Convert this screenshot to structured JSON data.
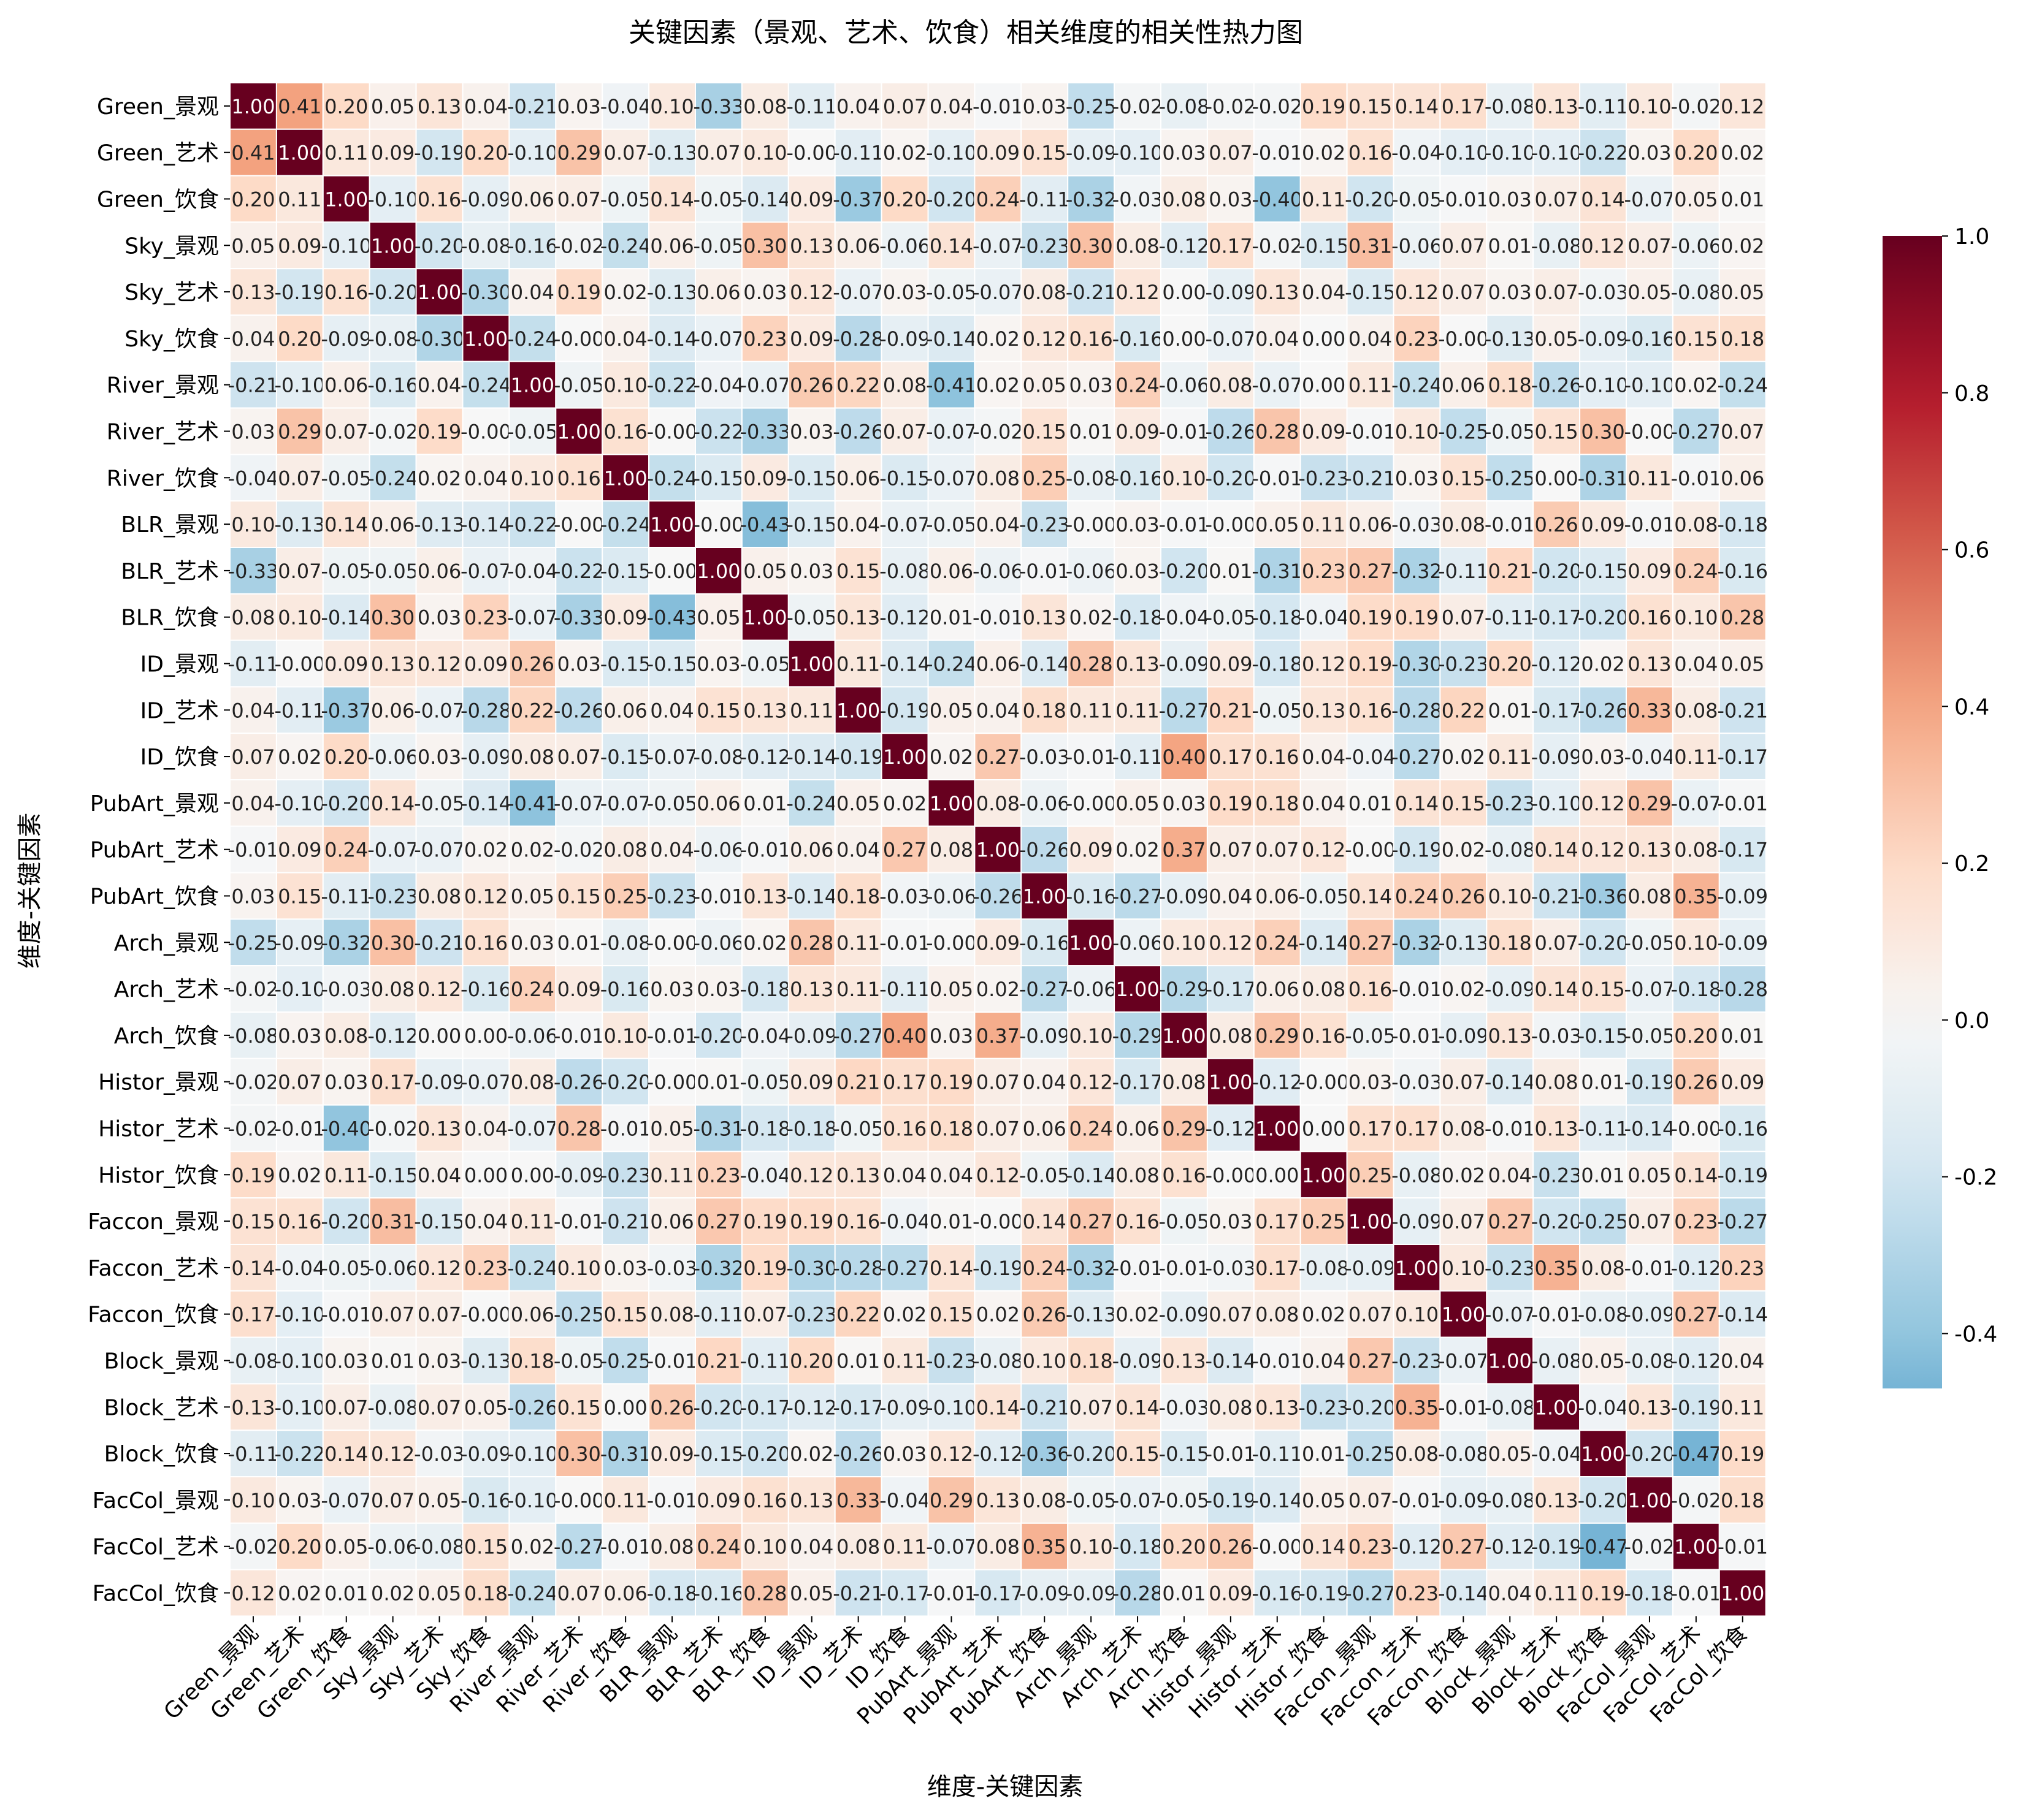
{
  "chart_data": {
    "type": "heatmap",
    "title": "关键因素（景观、艺术、饮食）相关维度的相关性热力图",
    "xlabel": "维度-关键因素",
    "ylabel": "维度-关键因素",
    "labels": [
      "Green_景观",
      "Green_艺术",
      "Green_饮食",
      "Sky_景观",
      "Sky_艺术",
      "Sky_饮食",
      "River_景观",
      "River_艺术",
      "River_饮食",
      "BLR_景观",
      "BLR_艺术",
      "BLR_饮食",
      "ID_景观",
      "ID_艺术",
      "ID_饮食",
      "PubArt_景观",
      "PubArt_艺术",
      "PubArt_饮食",
      "Arch_景观",
      "Arch_艺术",
      "Arch_饮食",
      "Histor_景观",
      "Histor_艺术",
      "Histor_饮食",
      "Faccon_景观",
      "Faccon_艺术",
      "Faccon_饮食",
      "Block_景观",
      "Block_艺术",
      "Block_饮食",
      "FacCol_景观",
      "FacCol_艺术",
      "FacCol_饮食"
    ],
    "values": [
      [
        1.0,
        0.41,
        0.2,
        0.05,
        0.13,
        0.04,
        -0.21,
        0.03,
        -0.04,
        0.1,
        -0.33,
        0.08,
        -0.11,
        0.04,
        0.07,
        0.04,
        -0.01,
        0.03,
        -0.25,
        -0.02,
        -0.08,
        -0.02,
        -0.02,
        0.19,
        0.15,
        0.14,
        0.17,
        -0.08,
        0.13,
        -0.11,
        0.1,
        -0.02,
        0.12
      ],
      [
        0.41,
        1.0,
        0.11,
        0.09,
        -0.19,
        0.2,
        -0.1,
        0.29,
        0.07,
        -0.13,
        0.07,
        0.1,
        -0.0,
        -0.11,
        0.02,
        -0.1,
        0.09,
        0.15,
        -0.09,
        -0.1,
        0.03,
        0.07,
        -0.01,
        0.02,
        0.16,
        -0.04,
        -0.1,
        -0.1,
        -0.1,
        -0.22,
        0.03,
        0.2,
        0.02
      ],
      [
        0.2,
        0.11,
        1.0,
        -0.1,
        0.16,
        -0.09,
        0.06,
        0.07,
        -0.05,
        0.14,
        -0.05,
        -0.14,
        0.09,
        -0.37,
        0.2,
        -0.2,
        0.24,
        -0.11,
        -0.32,
        -0.03,
        0.08,
        0.03,
        -0.4,
        0.11,
        -0.2,
        -0.05,
        -0.01,
        0.03,
        0.07,
        0.14,
        -0.07,
        0.05,
        0.01
      ],
      [
        0.05,
        0.09,
        -0.1,
        1.0,
        -0.2,
        -0.08,
        -0.16,
        -0.02,
        -0.24,
        0.06,
        -0.05,
        0.3,
        0.13,
        0.06,
        -0.06,
        0.14,
        -0.07,
        -0.23,
        0.3,
        0.08,
        -0.12,
        0.17,
        -0.02,
        -0.15,
        0.31,
        -0.06,
        0.07,
        0.01,
        -0.08,
        0.12,
        0.07,
        -0.06,
        0.02
      ],
      [
        0.13,
        -0.19,
        0.16,
        -0.2,
        1.0,
        -0.3,
        0.04,
        0.19,
        0.02,
        -0.13,
        0.06,
        0.03,
        0.12,
        -0.07,
        0.03,
        -0.05,
        -0.07,
        0.08,
        -0.21,
        0.12,
        0.0,
        -0.09,
        0.13,
        0.04,
        -0.15,
        0.12,
        0.07,
        0.03,
        0.07,
        -0.03,
        0.05,
        -0.08,
        0.05
      ],
      [
        0.04,
        0.2,
        -0.09,
        -0.08,
        -0.3,
        1.0,
        -0.24,
        -0.0,
        0.04,
        -0.14,
        -0.07,
        0.23,
        0.09,
        -0.28,
        -0.09,
        -0.14,
        0.02,
        0.12,
        0.16,
        -0.16,
        0.0,
        -0.07,
        0.04,
        0.0,
        0.04,
        0.23,
        -0.0,
        -0.13,
        0.05,
        -0.09,
        -0.16,
        0.15,
        0.18
      ],
      [
        -0.21,
        -0.1,
        0.06,
        -0.16,
        0.04,
        -0.24,
        1.0,
        -0.05,
        0.1,
        -0.22,
        -0.04,
        -0.07,
        0.26,
        0.22,
        0.08,
        -0.41,
        0.02,
        0.05,
        0.03,
        0.24,
        -0.06,
        0.08,
        -0.07,
        0.0,
        0.11,
        -0.24,
        0.06,
        0.18,
        -0.26,
        -0.1,
        -0.1,
        0.02,
        -0.24
      ],
      [
        0.03,
        0.29,
        0.07,
        -0.02,
        0.19,
        -0.0,
        -0.05,
        1.0,
        0.16,
        -0.0,
        -0.22,
        -0.33,
        0.03,
        -0.26,
        0.07,
        -0.07,
        -0.02,
        0.15,
        0.01,
        0.09,
        -0.01,
        -0.26,
        0.28,
        0.09,
        -0.01,
        0.1,
        -0.25,
        -0.05,
        0.15,
        0.3,
        -0.0,
        -0.27,
        0.07
      ],
      [
        -0.04,
        0.07,
        -0.05,
        -0.24,
        0.02,
        0.04,
        0.1,
        0.16,
        1.0,
        -0.24,
        -0.15,
        0.09,
        -0.15,
        0.06,
        -0.15,
        -0.07,
        0.08,
        0.25,
        -0.08,
        -0.16,
        0.1,
        -0.2,
        -0.01,
        -0.23,
        -0.21,
        0.03,
        0.15,
        -0.25,
        0.0,
        -0.31,
        0.11,
        -0.01,
        0.06
      ],
      [
        0.1,
        -0.13,
        0.14,
        0.06,
        -0.13,
        -0.14,
        -0.22,
        -0.0,
        -0.24,
        1.0,
        -0.0,
        -0.43,
        -0.15,
        0.04,
        -0.07,
        -0.05,
        0.04,
        -0.23,
        -0.0,
        0.03,
        -0.01,
        -0.0,
        0.05,
        0.11,
        0.06,
        -0.03,
        0.08,
        -0.01,
        0.26,
        0.09,
        -0.01,
        0.08,
        -0.18
      ],
      [
        -0.33,
        0.07,
        -0.05,
        -0.05,
        0.06,
        -0.07,
        -0.04,
        -0.22,
        -0.15,
        -0.0,
        1.0,
        0.05,
        0.03,
        0.15,
        -0.08,
        0.06,
        -0.06,
        -0.01,
        -0.06,
        0.03,
        -0.2,
        0.01,
        -0.31,
        0.23,
        0.27,
        -0.32,
        -0.11,
        0.21,
        -0.2,
        -0.15,
        0.09,
        0.24,
        -0.16
      ],
      [
        0.08,
        0.1,
        -0.14,
        0.3,
        0.03,
        0.23,
        -0.07,
        -0.33,
        0.09,
        -0.43,
        0.05,
        1.0,
        -0.05,
        0.13,
        -0.12,
        0.01,
        -0.01,
        0.13,
        0.02,
        -0.18,
        -0.04,
        -0.05,
        -0.18,
        -0.04,
        0.19,
        0.19,
        0.07,
        -0.11,
        -0.17,
        -0.2,
        0.16,
        0.1,
        0.28
      ],
      [
        -0.11,
        -0.0,
        0.09,
        0.13,
        0.12,
        0.09,
        0.26,
        0.03,
        -0.15,
        -0.15,
        0.03,
        -0.05,
        1.0,
        0.11,
        -0.14,
        -0.24,
        0.06,
        -0.14,
        0.28,
        0.13,
        -0.09,
        0.09,
        -0.18,
        0.12,
        0.19,
        -0.3,
        -0.23,
        0.2,
        -0.12,
        0.02,
        0.13,
        0.04,
        0.05
      ],
      [
        0.04,
        -0.11,
        -0.37,
        0.06,
        -0.07,
        -0.28,
        0.22,
        -0.26,
        0.06,
        0.04,
        0.15,
        0.13,
        0.11,
        1.0,
        -0.19,
        0.05,
        0.04,
        0.18,
        0.11,
        0.11,
        -0.27,
        0.21,
        -0.05,
        0.13,
        0.16,
        -0.28,
        0.22,
        0.01,
        -0.17,
        -0.26,
        0.33,
        0.08,
        -0.21
      ],
      [
        0.07,
        0.02,
        0.2,
        -0.06,
        0.03,
        -0.09,
        0.08,
        0.07,
        -0.15,
        -0.07,
        -0.08,
        -0.12,
        -0.14,
        -0.19,
        1.0,
        0.02,
        0.27,
        -0.03,
        -0.01,
        -0.11,
        0.4,
        0.17,
        0.16,
        0.04,
        -0.04,
        -0.27,
        0.02,
        0.11,
        -0.09,
        0.03,
        -0.04,
        0.11,
        -0.17
      ],
      [
        0.04,
        -0.1,
        -0.2,
        0.14,
        -0.05,
        -0.14,
        -0.41,
        -0.07,
        -0.07,
        -0.05,
        0.06,
        0.01,
        -0.24,
        0.05,
        0.02,
        1.0,
        0.08,
        -0.06,
        -0.0,
        0.05,
        0.03,
        0.19,
        0.18,
        0.04,
        0.01,
        0.14,
        0.15,
        -0.23,
        -0.1,
        0.12,
        0.29,
        -0.07,
        -0.01
      ],
      [
        -0.01,
        0.09,
        0.24,
        -0.07,
        -0.07,
        0.02,
        0.02,
        -0.02,
        0.08,
        0.04,
        -0.06,
        -0.01,
        0.06,
        0.04,
        0.27,
        0.08,
        1.0,
        -0.26,
        0.09,
        0.02,
        0.37,
        0.07,
        0.07,
        0.12,
        -0.0,
        -0.19,
        0.02,
        -0.08,
        0.14,
        0.12,
        0.13,
        0.08,
        -0.17
      ],
      [
        0.03,
        0.15,
        -0.11,
        -0.23,
        0.08,
        0.12,
        0.05,
        0.15,
        0.25,
        -0.23,
        -0.01,
        0.13,
        -0.14,
        0.18,
        -0.03,
        -0.06,
        -0.26,
        1.0,
        -0.16,
        -0.27,
        -0.09,
        0.04,
        0.06,
        -0.05,
        0.14,
        0.24,
        0.26,
        0.1,
        -0.21,
        -0.36,
        0.08,
        0.35,
        -0.09
      ],
      [
        -0.25,
        -0.09,
        -0.32,
        0.3,
        -0.21,
        0.16,
        0.03,
        0.01,
        -0.08,
        -0.0,
        -0.06,
        0.02,
        0.28,
        0.11,
        -0.01,
        -0.0,
        0.09,
        -0.16,
        1.0,
        -0.06,
        0.1,
        0.12,
        0.24,
        -0.14,
        0.27,
        -0.32,
        -0.13,
        0.18,
        0.07,
        -0.2,
        -0.05,
        0.1,
        -0.09
      ],
      [
        -0.02,
        -0.1,
        -0.03,
        0.08,
        0.12,
        -0.16,
        0.24,
        0.09,
        -0.16,
        0.03,
        0.03,
        -0.18,
        0.13,
        0.11,
        -0.11,
        0.05,
        0.02,
        -0.27,
        -0.06,
        1.0,
        -0.29,
        -0.17,
        0.06,
        0.08,
        0.16,
        -0.01,
        0.02,
        -0.09,
        0.14,
        0.15,
        -0.07,
        -0.18,
        -0.28
      ],
      [
        -0.08,
        0.03,
        0.08,
        -0.12,
        0.0,
        0.0,
        -0.06,
        -0.01,
        0.1,
        -0.01,
        -0.2,
        -0.04,
        -0.09,
        -0.27,
        0.4,
        0.03,
        0.37,
        -0.09,
        0.1,
        -0.29,
        1.0,
        0.08,
        0.29,
        0.16,
        -0.05,
        -0.01,
        -0.09,
        0.13,
        -0.03,
        -0.15,
        -0.05,
        0.2,
        0.01
      ],
      [
        -0.02,
        0.07,
        0.03,
        0.17,
        -0.09,
        -0.07,
        0.08,
        -0.26,
        -0.2,
        -0.0,
        0.01,
        -0.05,
        0.09,
        0.21,
        0.17,
        0.19,
        0.07,
        0.04,
        0.12,
        -0.17,
        0.08,
        1.0,
        -0.12,
        -0.0,
        0.03,
        -0.03,
        0.07,
        -0.14,
        0.08,
        0.01,
        -0.19,
        0.26,
        0.09
      ],
      [
        -0.02,
        -0.01,
        -0.4,
        -0.02,
        0.13,
        0.04,
        -0.07,
        0.28,
        -0.01,
        0.05,
        -0.31,
        -0.18,
        -0.18,
        -0.05,
        0.16,
        0.18,
        0.07,
        0.06,
        0.24,
        0.06,
        0.29,
        -0.12,
        1.0,
        0.0,
        0.17,
        0.17,
        0.08,
        -0.01,
        0.13,
        -0.11,
        -0.14,
        -0.0,
        -0.16
      ],
      [
        0.19,
        0.02,
        0.11,
        -0.15,
        0.04,
        0.0,
        0.0,
        -0.09,
        -0.23,
        0.11,
        0.23,
        -0.04,
        0.12,
        0.13,
        0.04,
        0.04,
        0.12,
        -0.05,
        -0.14,
        0.08,
        0.16,
        -0.0,
        0.0,
        1.0,
        0.25,
        -0.08,
        0.02,
        0.04,
        -0.23,
        0.01,
        0.05,
        0.14,
        -0.19
      ],
      [
        0.15,
        0.16,
        -0.2,
        0.31,
        -0.15,
        0.04,
        0.11,
        -0.01,
        -0.21,
        0.06,
        0.27,
        0.19,
        0.19,
        0.16,
        -0.04,
        0.01,
        -0.0,
        0.14,
        0.27,
        0.16,
        -0.05,
        0.03,
        0.17,
        0.25,
        1.0,
        -0.09,
        0.07,
        0.27,
        -0.2,
        -0.25,
        0.07,
        0.23,
        -0.27
      ],
      [
        0.14,
        -0.04,
        -0.05,
        -0.06,
        0.12,
        0.23,
        -0.24,
        0.1,
        0.03,
        -0.03,
        -0.32,
        0.19,
        -0.3,
        -0.28,
        -0.27,
        0.14,
        -0.19,
        0.24,
        -0.32,
        -0.01,
        -0.01,
        -0.03,
        0.17,
        -0.08,
        -0.09,
        1.0,
        0.1,
        -0.23,
        0.35,
        0.08,
        -0.01,
        -0.12,
        0.23
      ],
      [
        0.17,
        -0.1,
        -0.01,
        0.07,
        0.07,
        -0.0,
        0.06,
        -0.25,
        0.15,
        0.08,
        -0.11,
        0.07,
        -0.23,
        0.22,
        0.02,
        0.15,
        0.02,
        0.26,
        -0.13,
        0.02,
        -0.09,
        0.07,
        0.08,
        0.02,
        0.07,
        0.1,
        1.0,
        -0.07,
        -0.01,
        -0.08,
        -0.09,
        0.27,
        -0.14
      ],
      [
        -0.08,
        -0.1,
        0.03,
        0.01,
        0.03,
        -0.13,
        0.18,
        -0.05,
        -0.25,
        -0.01,
        0.21,
        -0.11,
        0.2,
        0.01,
        0.11,
        -0.23,
        -0.08,
        0.1,
        0.18,
        -0.09,
        0.13,
        -0.14,
        -0.01,
        0.04,
        0.27,
        -0.23,
        -0.07,
        1.0,
        -0.08,
        0.05,
        -0.08,
        -0.12,
        0.04
      ],
      [
        0.13,
        -0.1,
        0.07,
        -0.08,
        0.07,
        0.05,
        -0.26,
        0.15,
        0.0,
        0.26,
        -0.2,
        -0.17,
        -0.12,
        -0.17,
        -0.09,
        -0.1,
        0.14,
        -0.21,
        0.07,
        0.14,
        -0.03,
        0.08,
        0.13,
        -0.23,
        -0.2,
        0.35,
        -0.01,
        -0.08,
        1.0,
        -0.04,
        0.13,
        -0.19,
        0.11
      ],
      [
        -0.11,
        -0.22,
        0.14,
        0.12,
        -0.03,
        -0.09,
        -0.1,
        0.3,
        -0.31,
        0.09,
        -0.15,
        -0.2,
        0.02,
        -0.26,
        0.03,
        0.12,
        -0.12,
        -0.36,
        -0.2,
        0.15,
        -0.15,
        -0.01,
        -0.11,
        0.01,
        -0.25,
        0.08,
        -0.08,
        0.05,
        -0.04,
        1.0,
        -0.2,
        -0.47,
        0.19
      ],
      [
        0.1,
        0.03,
        -0.07,
        0.07,
        0.05,
        -0.16,
        -0.1,
        -0.0,
        0.11,
        -0.01,
        0.09,
        0.16,
        0.13,
        0.33,
        -0.04,
        0.29,
        0.13,
        0.08,
        -0.05,
        -0.07,
        -0.05,
        -0.19,
        -0.14,
        0.05,
        0.07,
        -0.01,
        -0.09,
        -0.08,
        0.13,
        -0.2,
        1.0,
        -0.02,
        0.18
      ],
      [
        -0.02,
        0.2,
        0.05,
        -0.06,
        -0.08,
        0.15,
        0.02,
        -0.27,
        -0.01,
        0.08,
        0.24,
        0.1,
        0.04,
        0.08,
        0.11,
        -0.07,
        0.08,
        0.35,
        0.1,
        -0.18,
        0.2,
        0.26,
        -0.0,
        0.14,
        0.23,
        -0.12,
        0.27,
        -0.12,
        -0.19,
        -0.47,
        -0.02,
        1.0,
        -0.01
      ],
      [
        0.12,
        0.02,
        0.01,
        0.02,
        0.05,
        0.18,
        -0.24,
        0.07,
        0.06,
        -0.18,
        -0.16,
        0.28,
        0.05,
        -0.21,
        -0.17,
        -0.01,
        -0.17,
        -0.09,
        -0.09,
        -0.28,
        0.01,
        0.09,
        -0.16,
        -0.19,
        -0.27,
        0.23,
        -0.14,
        0.04,
        0.11,
        0.19,
        -0.18,
        -0.01,
        1.0
      ]
    ],
    "value_range": [
      -0.47,
      1.0
    ],
    "colorbar": {
      "ticks": [
        "1.0",
        "0.8",
        "0.6",
        "0.4",
        "0.2",
        "0.0",
        "-0.2",
        "-0.4"
      ],
      "tick_values": [
        1.0,
        0.8,
        0.6,
        0.4,
        0.2,
        0.0,
        -0.2,
        -0.4
      ],
      "colormap": "RdBu_r",
      "center": 0.0
    },
    "annotate": true,
    "grid": false,
    "legend": "right"
  }
}
